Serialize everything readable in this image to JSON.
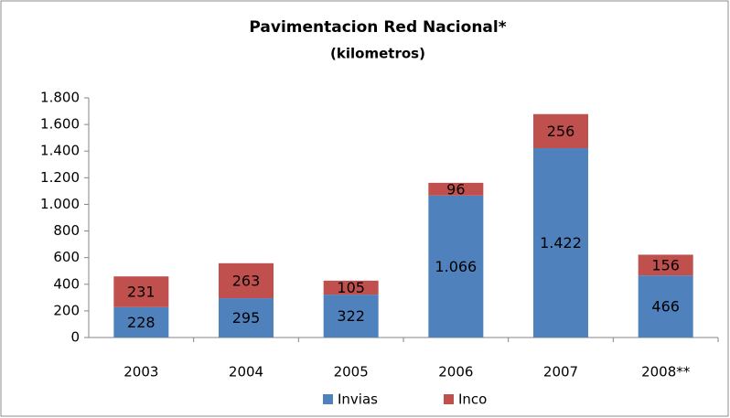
{
  "chart_data": {
    "type": "stacked_bar",
    "title": "Pavimentacion Red Nacional*",
    "subtitle": "(kilometros)",
    "categories": [
      "2003",
      "2004",
      "2005",
      "2006",
      "2007",
      "2008**"
    ],
    "series": [
      {
        "name": "Invias",
        "color": "#4f81bd",
        "values": [
          228,
          295,
          322,
          1066,
          1422,
          466
        ],
        "value_labels": [
          "228",
          "295",
          "322",
          "1.066",
          "1.422",
          "466"
        ]
      },
      {
        "name": "Inco",
        "color": "#c0504d",
        "values": [
          231,
          263,
          105,
          96,
          256,
          156
        ]
      }
    ],
    "ylim": [
      0,
      1800
    ],
    "yticks": [
      0,
      200,
      400,
      600,
      800,
      {
        "value": 1000,
        "label": "1.000"
      },
      {
        "value": 1200,
        "label": "1.200"
      },
      {
        "value": 1400,
        "label": "1.400"
      },
      {
        "value": 1600,
        "label": "1.600"
      },
      {
        "value": 1800,
        "label": "1.800"
      }
    ],
    "grid": false,
    "legend": "bottom"
  }
}
